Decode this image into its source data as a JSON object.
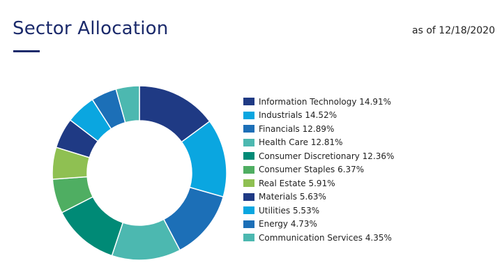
{
  "header": {
    "title": "Sector Allocation",
    "as_of": "as of 12/18/2020"
  },
  "chart_data": {
    "type": "pie",
    "style": "donut",
    "legend_position": "right",
    "categories": [
      "Information Technology",
      "Industrials",
      "Financials",
      "Health Care",
      "Consumer Discretionary",
      "Consumer Staples",
      "Real Estate",
      "Materials",
      "Utilities",
      "Energy",
      "Communication Services"
    ],
    "values": [
      14.91,
      14.52,
      12.89,
      12.81,
      12.36,
      6.37,
      5.91,
      5.63,
      5.53,
      4.73,
      4.35
    ],
    "labels": [
      "Information Technology 14.91%",
      "Industrials 14.52%",
      "Financials 12.89%",
      "Health Care 12.81%",
      "Consumer Discretionary 12.36%",
      "Consumer Staples 6.37%",
      "Real Estate 5.91%",
      "Materials 5.63%",
      "Utilities 5.53%",
      "Energy 4.73%",
      "Communication Services 4.35%"
    ],
    "colors": [
      "#1f3a84",
      "#0aa6e0",
      "#1c6fb7",
      "#4cb8b0",
      "#008a76",
      "#4fae62",
      "#8fc052",
      "#1f3a84",
      "#0aa6e0",
      "#1c6fb7",
      "#4cb8b0"
    ]
  }
}
